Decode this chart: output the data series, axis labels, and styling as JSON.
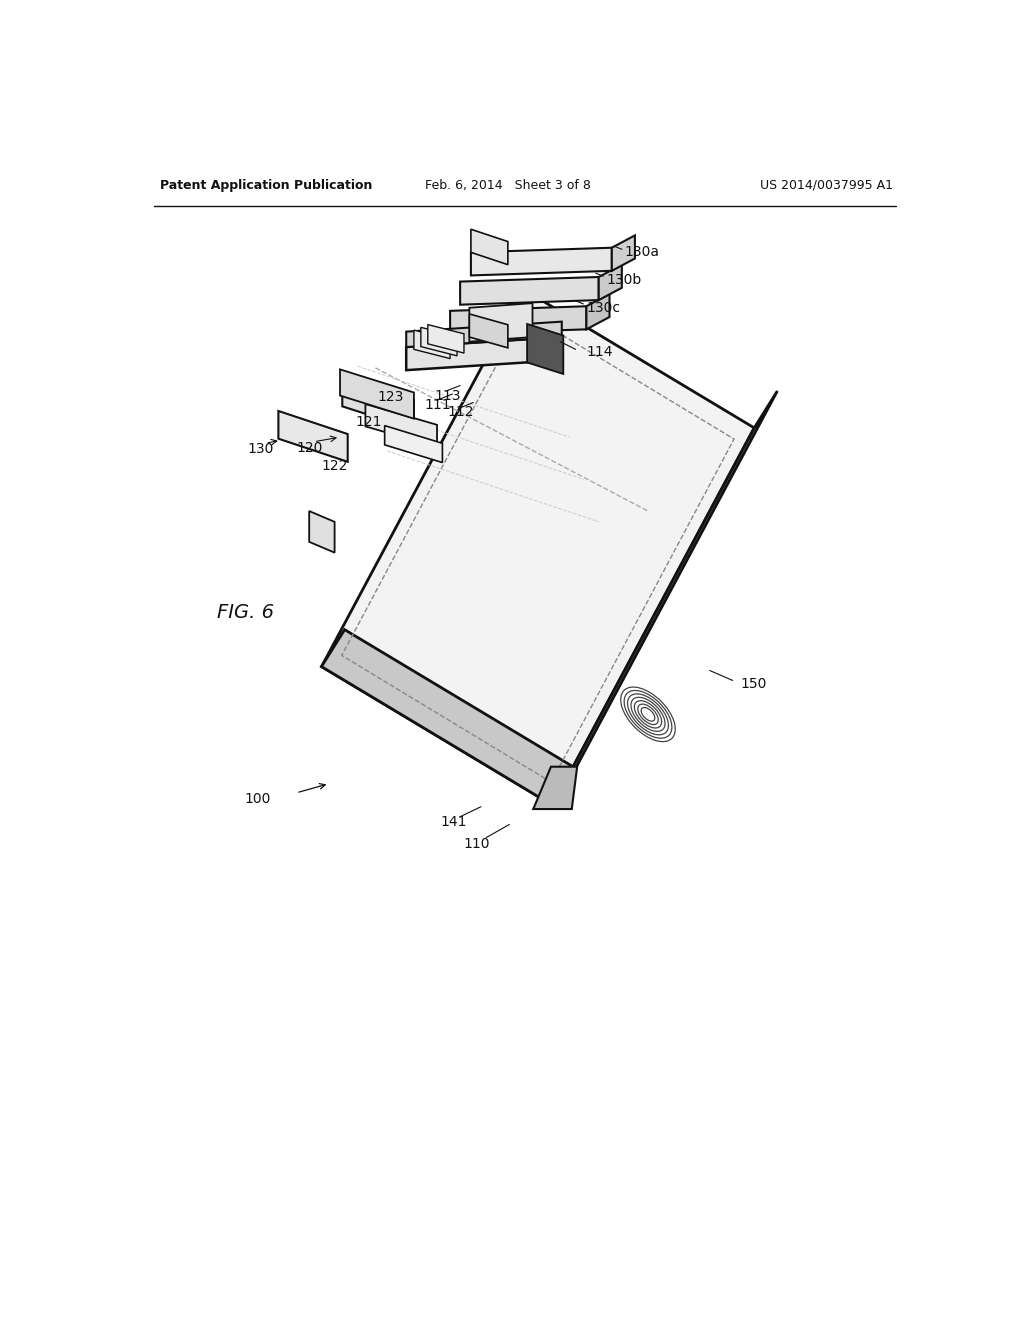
{
  "bg_color": "#ffffff",
  "line_color": "#111111",
  "header_left": "Patent Application Publication",
  "header_center": "Feb. 6, 2014   Sheet 3 of 8",
  "header_right": "US 2014/0037995 A1",
  "fig_label": "FIG. 6",
  "label_fontsize": 10,
  "header_fontsize": 9
}
